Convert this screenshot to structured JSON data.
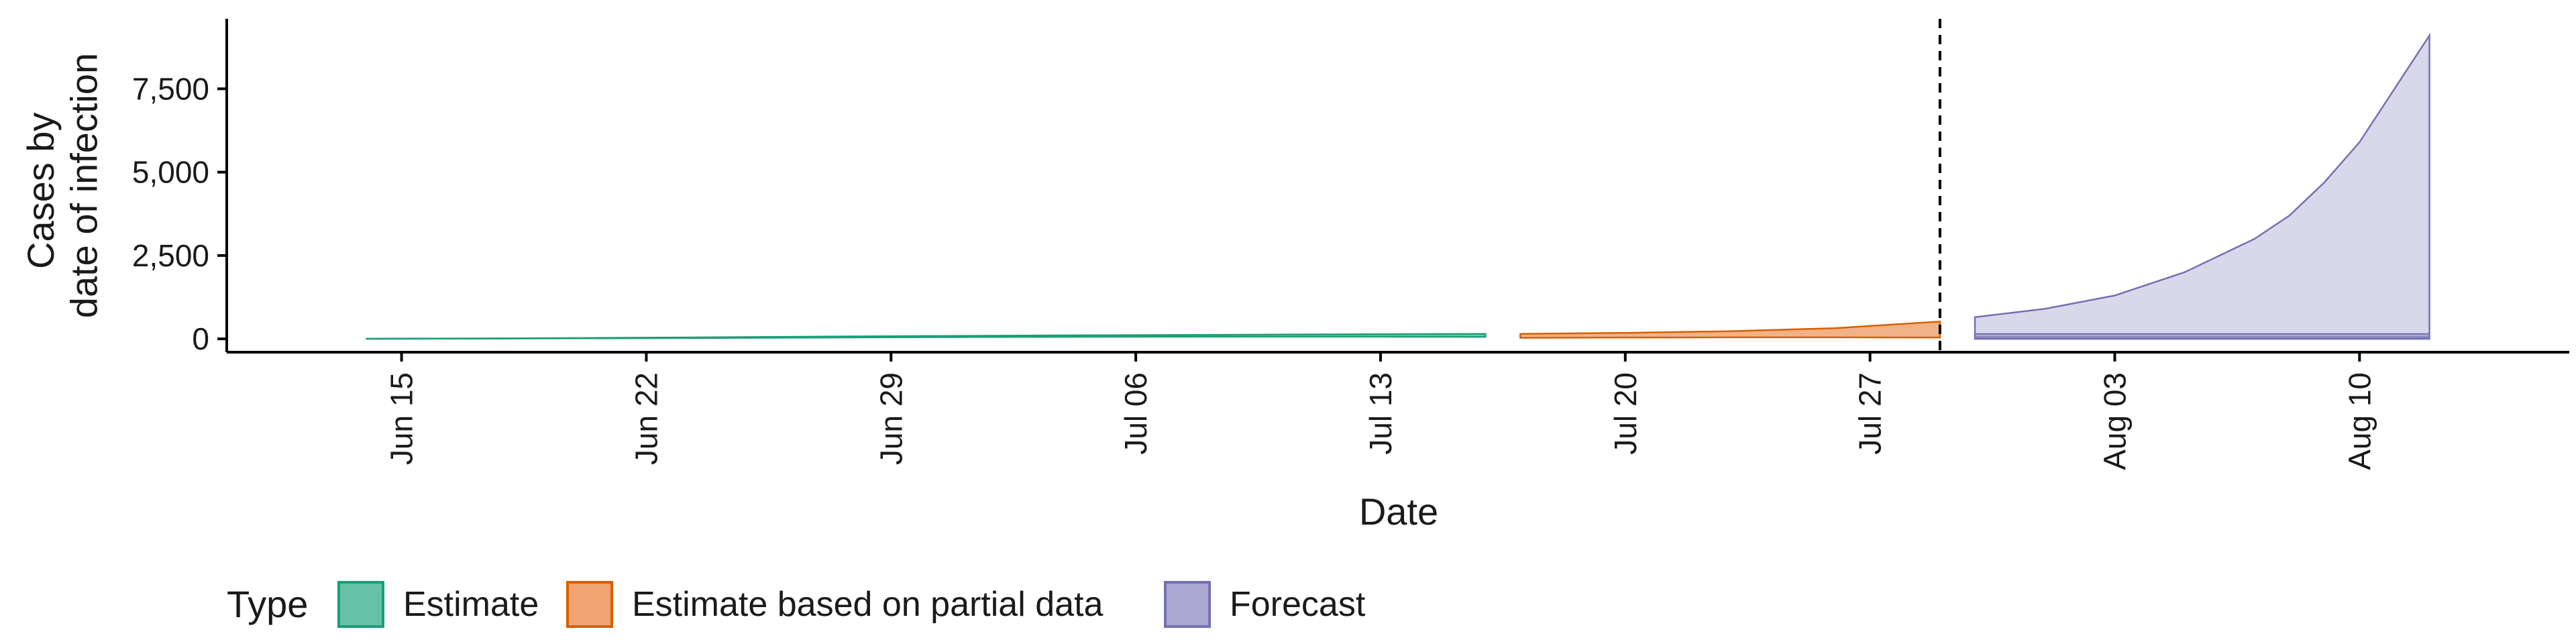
{
  "chart_data": {
    "type": "area",
    "xlabel": "Date",
    "ylabel": [
      "Cases by",
      "date of infection"
    ],
    "y_ticks": [
      0,
      2500,
      5000,
      7500
    ],
    "y_tick_labels": [
      "0",
      "2,500",
      "5,000",
      "7,500"
    ],
    "ylim": [
      -400,
      9600
    ],
    "xlim": [
      "2020-06-10",
      "2020-08-16"
    ],
    "x_ticks": [
      "2020-06-15",
      "2020-06-22",
      "2020-06-29",
      "2020-07-06",
      "2020-07-13",
      "2020-07-20",
      "2020-07-27",
      "2020-08-03",
      "2020-08-10"
    ],
    "x_tick_labels": [
      "Jun 15",
      "Jun 22",
      "Jun 29",
      "Jul 06",
      "Jul 13",
      "Jul 20",
      "Jul 27",
      "Aug 03",
      "Aug 10"
    ],
    "vline": {
      "date": "2020-07-29",
      "style": "dashed",
      "color": "#000000"
    },
    "grid": false,
    "legend": {
      "title": "Type",
      "position": "bottom-left",
      "entries": [
        {
          "label": "Estimate",
          "fill": "#66c2a5",
          "stroke": "#1b9e77"
        },
        {
          "label": "Estimate based on partial data",
          "fill": "#f0a472",
          "stroke": "#d95f02"
        },
        {
          "label": "Forecast",
          "fill": "#aaa7d3",
          "stroke": "#7570b3"
        }
      ]
    },
    "series": [
      {
        "name": "Estimate",
        "fill": "#66c2a5",
        "stroke": "#1b9e77",
        "points": [
          {
            "x": "2020-06-14",
            "lower": 0,
            "upper": 5
          },
          {
            "x": "2020-06-18",
            "lower": 8,
            "upper": 15
          },
          {
            "x": "2020-06-22",
            "lower": 20,
            "upper": 35
          },
          {
            "x": "2020-06-26",
            "lower": 35,
            "upper": 60
          },
          {
            "x": "2020-06-30",
            "lower": 50,
            "upper": 85
          },
          {
            "x": "2020-07-04",
            "lower": 60,
            "upper": 105
          },
          {
            "x": "2020-07-08",
            "lower": 65,
            "upper": 120
          },
          {
            "x": "2020-07-12",
            "lower": 65,
            "upper": 135
          },
          {
            "x": "2020-07-16",
            "lower": 60,
            "upper": 150
          }
        ]
      },
      {
        "name": "Estimate based on partial data",
        "fill": "#f0a472",
        "stroke": "#d95f02",
        "points": [
          {
            "x": "2020-07-17",
            "lower": 30,
            "upper": 150
          },
          {
            "x": "2020-07-20",
            "lower": 40,
            "upper": 180
          },
          {
            "x": "2020-07-23",
            "lower": 45,
            "upper": 230
          },
          {
            "x": "2020-07-26",
            "lower": 45,
            "upper": 320
          },
          {
            "x": "2020-07-29",
            "lower": 40,
            "upper": 520
          }
        ]
      },
      {
        "name": "Forecast",
        "fill": "#d9d8ea",
        "stroke": "#7570b3",
        "points": [
          {
            "x": "2020-07-30",
            "lower": 0,
            "upper": 650
          },
          {
            "x": "2020-08-01",
            "lower": 0,
            "upper": 900
          },
          {
            "x": "2020-08-03",
            "lower": 0,
            "upper": 1300
          },
          {
            "x": "2020-08-05",
            "lower": 0,
            "upper": 2000
          },
          {
            "x": "2020-08-07",
            "lower": 0,
            "upper": 3000
          },
          {
            "x": "2020-08-08",
            "lower": 0,
            "upper": 3700
          },
          {
            "x": "2020-08-09",
            "lower": 0,
            "upper": 4700
          },
          {
            "x": "2020-08-10",
            "lower": 0,
            "upper": 5900
          },
          {
            "x": "2020-08-11",
            "lower": 0,
            "upper": 7500
          },
          {
            "x": "2020-08-12",
            "lower": 0,
            "upper": 9100
          }
        ],
        "inner_band": {
          "lower": 50,
          "upper": 150,
          "fill": "#aaa7d3"
        }
      }
    ]
  }
}
